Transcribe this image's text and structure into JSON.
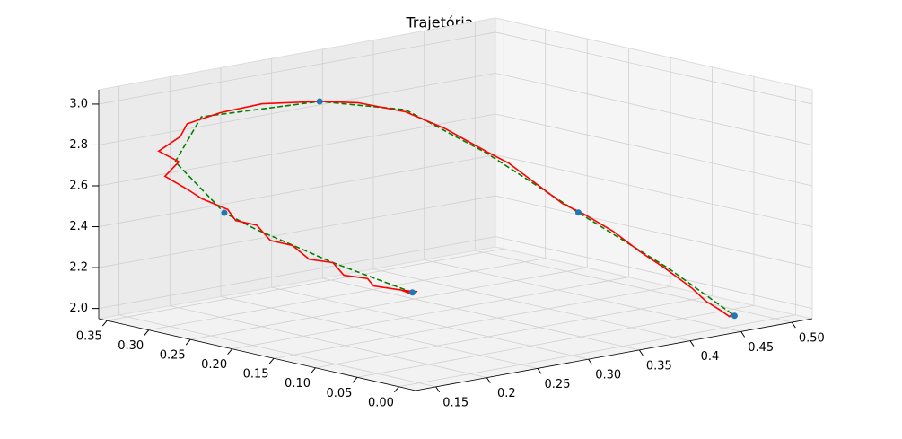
{
  "chart_data": {
    "type": "line3d",
    "title": "Trajetória",
    "xlim": [
      0.13,
      0.52
    ],
    "ylim": [
      -0.02,
      0.36
    ],
    "zlim": [
      1.95,
      3.07
    ],
    "xticks": [
      0.15,
      0.2,
      0.25,
      {
        "value": 0.3,
        "label": "0.30"
      },
      0.35,
      0.4,
      0.45,
      {
        "value": 0.5,
        "label": "0.50"
      }
    ],
    "yticks": [
      {
        "value": 0,
        "label": "0.00"
      },
      0.05,
      {
        "value": 0.1,
        "label": "0.10"
      },
      0.15,
      {
        "value": 0.2,
        "label": "0.20"
      },
      0.25,
      {
        "value": 0.3,
        "label": "0.30"
      },
      0.35
    ],
    "zticks": [
      {
        "value": 2,
        "label": "2.0"
      },
      2.2,
      2.4,
      2.6,
      2.8,
      {
        "value": 3,
        "label": "3.0"
      }
    ],
    "grid": true,
    "series": [
      {
        "kind": "line",
        "color": "#008000",
        "linestyle": "dashed",
        "x": [
          0.34,
          0.27,
          0.21,
          0.183,
          0.156,
          0.19,
          0.257,
          0.284,
          0.298,
          0.377,
          0.414,
          0.46
        ],
        "y": [
          0.24,
          0.25,
          0.27,
          0.274,
          0.3,
          0.31,
          0.25,
          0.18,
          0.1,
          0.086,
          0.022,
          0.0
        ],
        "z": [
          2.0,
          2.2,
          2.4,
          2.5,
          2.75,
          2.93,
          3.0,
          3.0,
          2.85,
          2.5,
          2.25,
          2.0
        ]
      },
      {
        "kind": "line",
        "color": "#ff0000",
        "linestyle": "solid",
        "x": [
          0.345,
          0.335,
          0.34,
          0.33,
          0.31,
          0.3,
          0.285,
          0.27,
          0.255,
          0.24,
          0.225,
          0.21,
          0.195,
          0.183,
          0.17,
          0.16,
          0.15,
          0.158,
          0.148,
          0.165,
          0.18,
          0.2,
          0.225,
          0.257,
          0.27,
          0.284,
          0.29,
          0.3,
          0.32,
          0.335,
          0.35,
          0.365,
          0.377,
          0.39,
          0.4,
          0.414,
          0.43,
          0.44,
          0.45,
          0.455,
          0.46
        ],
        "y": [
          0.24,
          0.245,
          0.238,
          0.242,
          0.25,
          0.245,
          0.255,
          0.25,
          0.26,
          0.262,
          0.27,
          0.268,
          0.275,
          0.27,
          0.285,
          0.29,
          0.305,
          0.298,
          0.31,
          0.305,
          0.315,
          0.3,
          0.28,
          0.25,
          0.22,
          0.18,
          0.14,
          0.1,
          0.1,
          0.095,
          0.09,
          0.09,
          0.08,
          0.06,
          0.04,
          0.028,
          0.015,
          0.01,
          0.004,
          0.0,
          0.002
        ],
        "z": [
          2.0,
          2.01,
          1.99,
          2.02,
          2.05,
          2.1,
          2.12,
          2.2,
          2.22,
          2.3,
          2.33,
          2.42,
          2.45,
          2.52,
          2.57,
          2.62,
          2.68,
          2.75,
          2.8,
          2.86,
          2.9,
          2.95,
          2.99,
          3.0,
          3.01,
          2.99,
          2.94,
          2.85,
          2.78,
          2.7,
          2.62,
          2.55,
          2.5,
          2.42,
          2.33,
          2.25,
          2.15,
          2.08,
          2.03,
          2.0,
          2.01
        ]
      },
      {
        "kind": "scatter",
        "color": "#1f77b4",
        "x": [
          0.34,
          0.183,
          0.257,
          0.377,
          0.46
        ],
        "y": [
          0.24,
          0.274,
          0.25,
          0.086,
          0.0
        ],
        "z": [
          2.0,
          2.5,
          3.0,
          2.5,
          2.0
        ]
      }
    ]
  }
}
